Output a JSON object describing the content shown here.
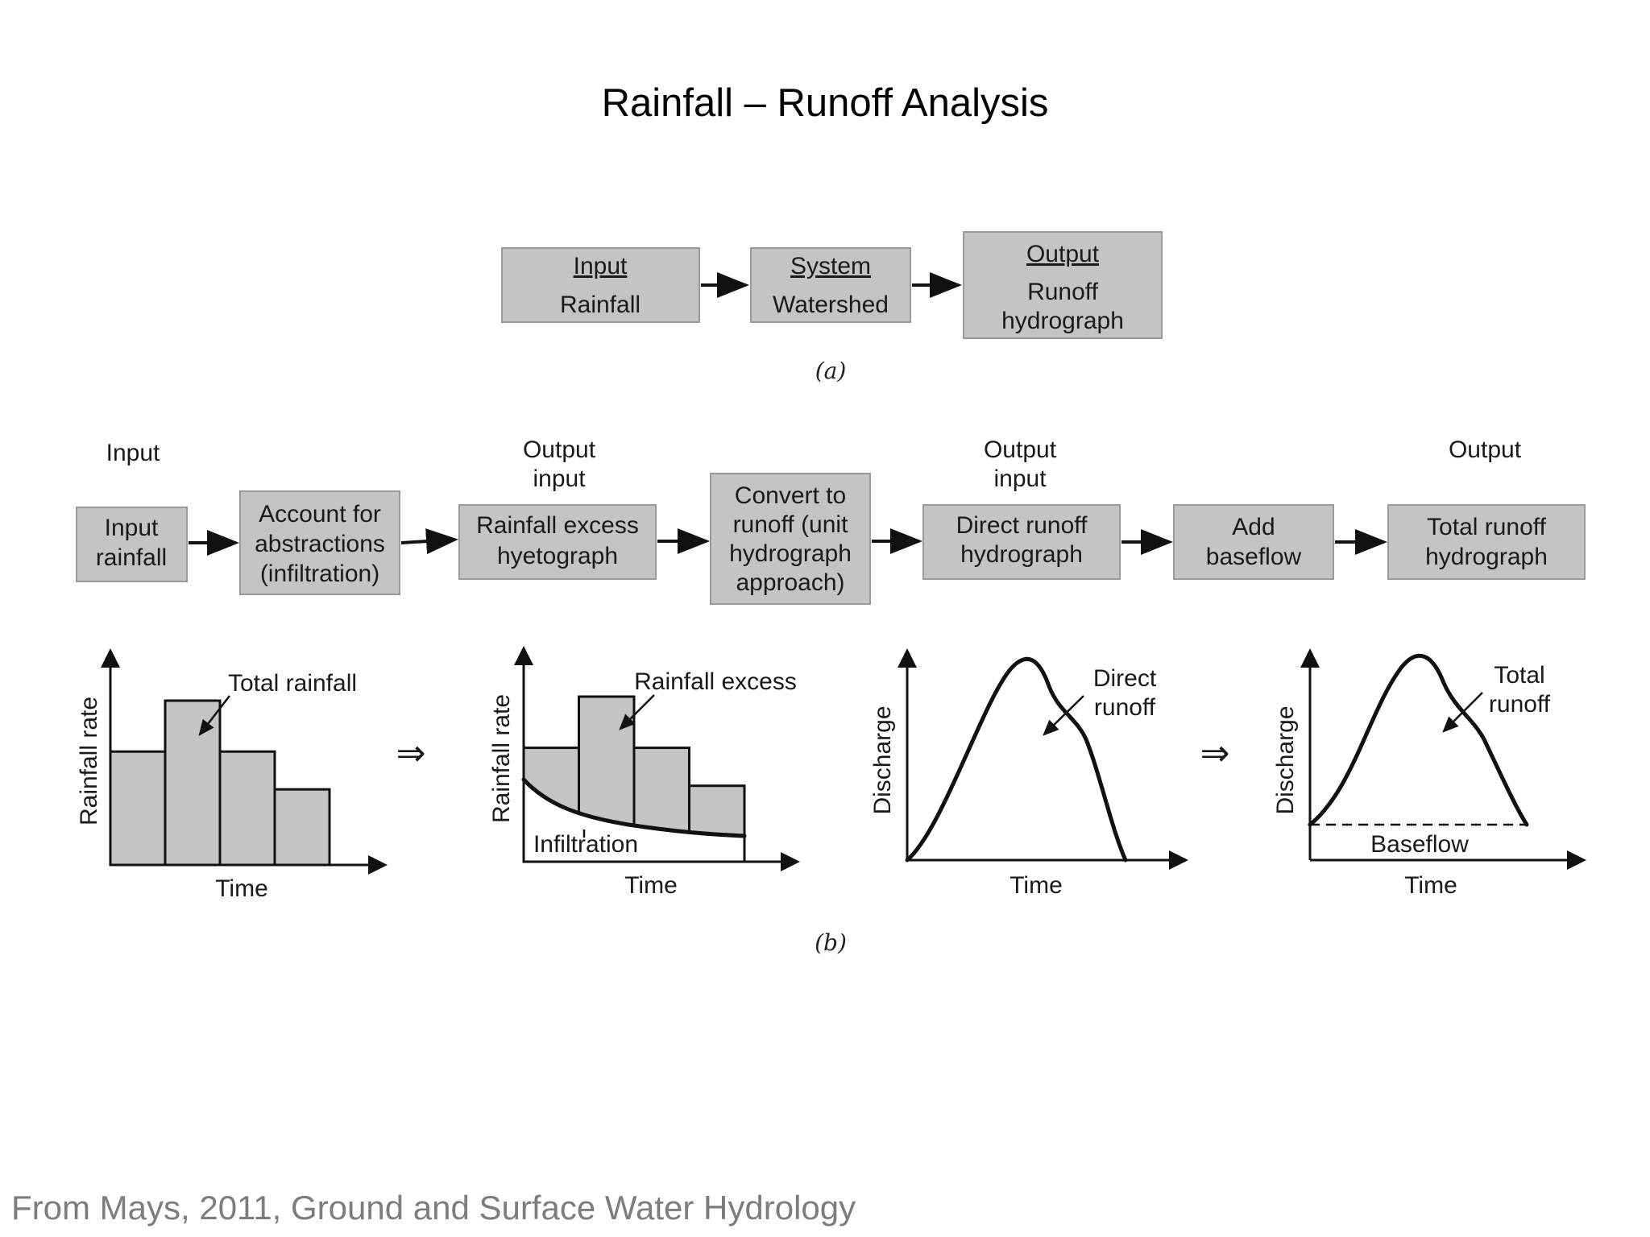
{
  "title": "Rainfall – Runoff Analysis",
  "part_a": {
    "boxes": [
      {
        "heading": "Input",
        "lines": [
          "Rainfall"
        ]
      },
      {
        "heading": "System",
        "lines": [
          "Watershed"
        ]
      },
      {
        "heading": "Output",
        "lines": [
          "Runoff",
          "hydrograph"
        ]
      }
    ],
    "caption": "(a)"
  },
  "part_b": {
    "stage_labels": [
      {
        "lines": [
          "Input"
        ]
      },
      {
        "lines": [
          "Output",
          "input"
        ]
      },
      {
        "lines": [
          "Output",
          "input"
        ]
      },
      {
        "lines": [
          "Output"
        ]
      }
    ],
    "steps": [
      {
        "lines": [
          "Input",
          "rainfall"
        ]
      },
      {
        "lines": [
          "Account for",
          "abstractions",
          "(infiltration)"
        ]
      },
      {
        "lines": [
          "Rainfall excess",
          "hyetograph"
        ]
      },
      {
        "lines": [
          "Convert to",
          "runoff (unit",
          "hydrograph",
          "approach)"
        ]
      },
      {
        "lines": [
          "Direct runoff",
          "hydrograph"
        ]
      },
      {
        "lines": [
          "Add",
          "baseflow"
        ]
      },
      {
        "lines": [
          "Total runoff",
          "hydrograph"
        ]
      }
    ],
    "caption": "(b)",
    "transition_symbol": "⇒",
    "plots": {
      "total_rainfall": {
        "ylabel": "Rainfall rate",
        "xlabel": "Time",
        "annotation": "Total rainfall",
        "bar_heights": [
          0.69,
          1.0,
          0.69,
          0.46
        ]
      },
      "rainfall_excess": {
        "ylabel": "Rainfall rate",
        "xlabel": "Time",
        "annotation": "Rainfall excess",
        "curve_label": "Infiltration",
        "bar_heights": [
          0.69,
          1.0,
          0.69,
          0.46
        ]
      },
      "direct_runoff": {
        "ylabel": "Discharge",
        "xlabel": "Time",
        "annotation_lines": [
          "Direct",
          "runoff"
        ]
      },
      "total_runoff": {
        "ylabel": "Discharge",
        "xlabel": "Time",
        "annotation_lines": [
          "Total",
          "runoff"
        ],
        "baseline_label": "Baseflow"
      }
    }
  },
  "citation": "From Mays, 2011, Ground and Surface Water Hydrology"
}
